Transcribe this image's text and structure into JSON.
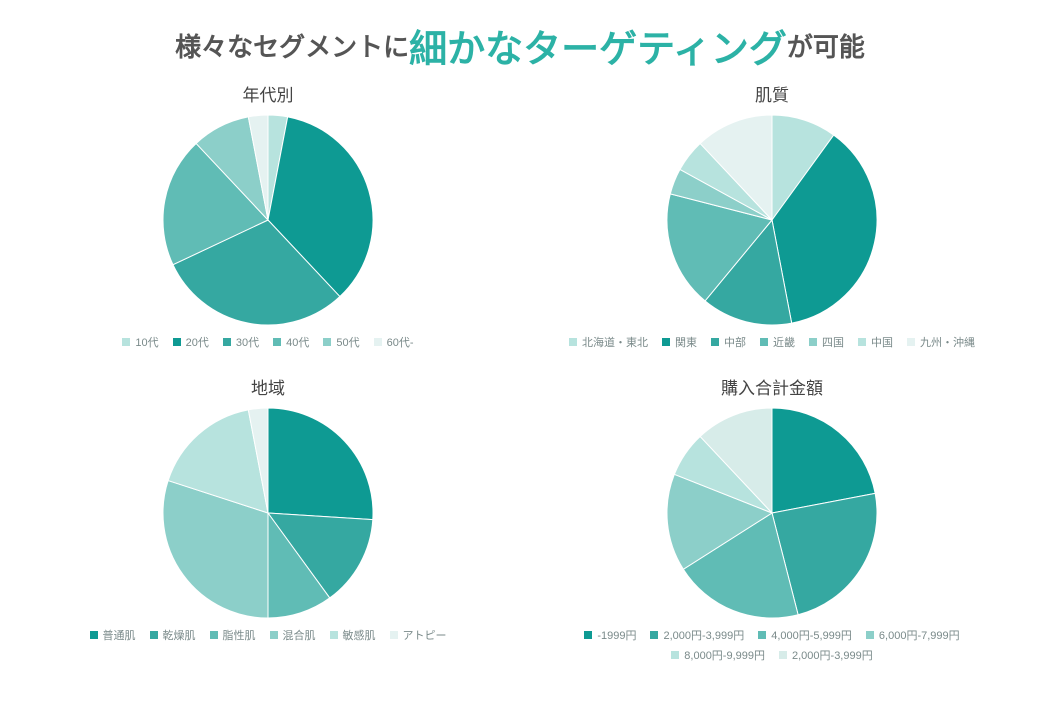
{
  "title": {
    "prefix": "様々なセグメントに",
    "accent": "細かなターゲティング",
    "suffix": "が可能",
    "plain_color": "#555555",
    "plain_fontsize": 26,
    "accent_color": "#2cb2a6",
    "accent_fontsize": 38
  },
  "background_color": "#ffffff",
  "legend_text_color": "#7a8a8a",
  "panels": [
    {
      "id": "age",
      "title": "年代別",
      "type": "pie",
      "pie_radius": 105,
      "start_angle_offset_deg": 0,
      "slice_stroke": "#ffffff",
      "slice_stroke_width": 1,
      "slices": [
        {
          "label": "10代",
          "value": 3,
          "color": "#b7e3de"
        },
        {
          "label": "20代",
          "value": 35,
          "color": "#0e9a93"
        },
        {
          "label": "30代",
          "value": 30,
          "color": "#35a8a1"
        },
        {
          "label": "40代",
          "value": 20,
          "color": "#60bcb5"
        },
        {
          "label": "50代",
          "value": 9,
          "color": "#8ccfc9"
        },
        {
          "label": "60代-",
          "value": 3,
          "color": "#e5f2f1"
        }
      ]
    },
    {
      "id": "skin",
      "title": "肌質",
      "type": "pie",
      "pie_radius": 105,
      "start_angle_offset_deg": 0,
      "slice_stroke": "#ffffff",
      "slice_stroke_width": 1,
      "slices": [
        {
          "label": "北海道・東北",
          "value": 10,
          "color": "#b7e3de"
        },
        {
          "label": "関東",
          "value": 37,
          "color": "#0e9a93"
        },
        {
          "label": "中部",
          "value": 14,
          "color": "#35a8a1"
        },
        {
          "label": "近畿",
          "value": 18,
          "color": "#60bcb5"
        },
        {
          "label": "四国",
          "value": 4,
          "color": "#8ccfc9"
        },
        {
          "label": "中国",
          "value": 5,
          "color": "#b7e3de"
        },
        {
          "label": "九州・沖縄",
          "value": 12,
          "color": "#e5f2f1"
        }
      ]
    },
    {
      "id": "region",
      "title": "地域",
      "type": "pie",
      "pie_radius": 105,
      "start_angle_offset_deg": 0,
      "slice_stroke": "#ffffff",
      "slice_stroke_width": 1,
      "slices": [
        {
          "label": "普通肌",
          "value": 26,
          "color": "#0e9a93"
        },
        {
          "label": "乾燥肌",
          "value": 14,
          "color": "#35a8a1"
        },
        {
          "label": "脂性肌",
          "value": 10,
          "color": "#60bcb5"
        },
        {
          "label": "混合肌",
          "value": 30,
          "color": "#8ccfc9"
        },
        {
          "label": "敏感肌",
          "value": 17,
          "color": "#b7e3de"
        },
        {
          "label": "アトピー",
          "value": 3,
          "color": "#e5f2f1"
        }
      ]
    },
    {
      "id": "spend",
      "title": "購入合計金額",
      "type": "pie",
      "pie_radius": 105,
      "start_angle_offset_deg": 0,
      "slice_stroke": "#ffffff",
      "slice_stroke_width": 1,
      "slices": [
        {
          "label": "-1999円",
          "value": 22,
          "color": "#0e9a93"
        },
        {
          "label": "2,000円-3,999円",
          "value": 24,
          "color": "#35a8a1"
        },
        {
          "label": "4,000円-5,999円",
          "value": 20,
          "color": "#60bcb5"
        },
        {
          "label": "6,000円-7,999円",
          "value": 15,
          "color": "#8ccfc9"
        },
        {
          "label": "8,000円-9,999円",
          "value": 7,
          "color": "#b7e3de"
        },
        {
          "label": "2,000円-3,999円",
          "value": 12,
          "color": "#d7ece9"
        }
      ]
    }
  ]
}
